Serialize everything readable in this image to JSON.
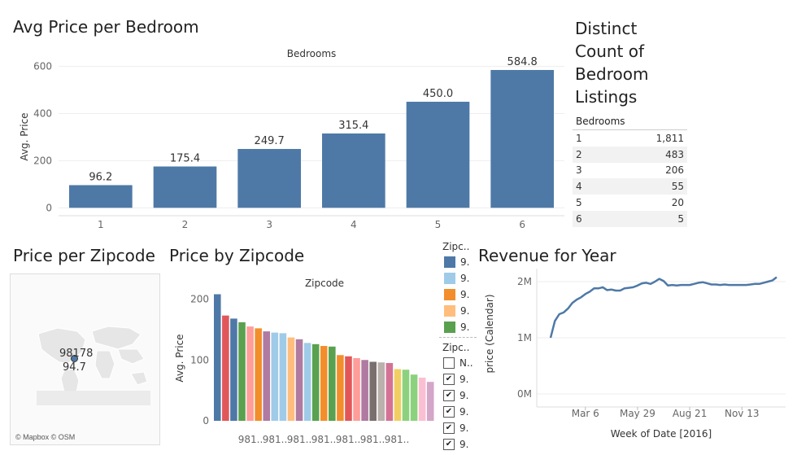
{
  "titles": {
    "avg_price_bedroom": "Avg Price per Bedroom",
    "distinct_count": "Distinct Count of Bedroom Listings",
    "price_per_zipcode": "Price per Zipcode",
    "price_by_zipcode": "Price by Zipcode",
    "revenue_year": "Revenue for Year"
  },
  "chart_data": [
    {
      "type": "bar",
      "title": "Avg Price per Bedroom",
      "header": "Bedrooms",
      "ylabel": "Avg. Price",
      "categories": [
        "1",
        "2",
        "3",
        "4",
        "5",
        "6"
      ],
      "values": [
        96.2,
        175.4,
        249.7,
        315.4,
        450.0,
        584.8
      ],
      "value_labels": [
        "96.2",
        "175.4",
        "249.7",
        "315.4",
        "450.0",
        "584.8"
      ],
      "yticks": [
        "0",
        "200",
        "400",
        "600"
      ],
      "ylim": [
        -30,
        640
      ],
      "color": "#4e79a7"
    },
    {
      "type": "table",
      "title": "Distinct Count of Bedroom Listings",
      "header": "Bedrooms",
      "rows": [
        {
          "bedrooms": "1",
          "count": "1,811"
        },
        {
          "bedrooms": "2",
          "count": "483"
        },
        {
          "bedrooms": "3",
          "count": "206"
        },
        {
          "bedrooms": "4",
          "count": "55"
        },
        {
          "bedrooms": "5",
          "count": "20"
        },
        {
          "bedrooms": "6",
          "count": "5"
        }
      ]
    },
    {
      "type": "bar",
      "title": "Price by Zipcode",
      "header": "Zipcode",
      "ylabel": "Avg. Price",
      "yticks": [
        "0",
        "100",
        "200"
      ],
      "ylim": [
        -12,
        210
      ],
      "tick_labels": [
        "981..",
        "981..",
        "981..",
        "981..",
        "981..",
        "981..",
        "981.."
      ],
      "values": [
        208,
        173,
        168,
        162,
        155,
        152,
        147,
        145,
        144,
        137,
        134,
        128,
        126,
        123,
        122,
        108,
        106,
        103,
        100,
        97,
        96,
        95,
        85,
        84,
        76,
        71,
        64
      ],
      "colors": [
        "#4e79a7",
        "#e15759",
        "#4e79a7",
        "#59a14f",
        "#ff9d9a",
        "#f28e2b",
        "#b07aa1",
        "#a0cbe8",
        "#a0cbe8",
        "#ffbe7d",
        "#b07aa1",
        "#a0cbe8",
        "#59a14f",
        "#f28e2b",
        "#59a14f",
        "#f28e2b",
        "#e15759",
        "#ff9d9a",
        "#b07aa1",
        "#79706e",
        "#bab0ac",
        "#d37295",
        "#f1ce63",
        "#8cd17d",
        "#8cd17d",
        "#fabfd2",
        "#d4a6c8"
      ]
    },
    {
      "type": "line",
      "title": "Revenue for Year",
      "xlabel": "Week of Date [2016]",
      "ylabel": "price (Calendar)",
      "yticks": [
        "0M",
        "1M",
        "2M"
      ],
      "xticks": [
        "Mar 6",
        "May 29",
        "Aug 21",
        "Nov 13"
      ],
      "xtick_weeks": [
        9,
        21,
        33,
        45
      ],
      "ylim": [
        0,
        2.2
      ],
      "x": [
        1,
        2,
        3,
        4,
        5,
        6,
        7,
        8,
        9,
        10,
        11,
        12,
        13,
        14,
        15,
        16,
        17,
        18,
        19,
        20,
        21,
        22,
        23,
        24,
        25,
        26,
        27,
        28,
        29,
        30,
        31,
        32,
        33,
        34,
        35,
        36,
        37,
        38,
        39,
        40,
        41,
        42,
        43,
        44,
        45,
        46,
        47,
        48,
        49,
        50,
        51,
        52,
        53
      ],
      "values": [
        1.0,
        1.3,
        1.42,
        1.45,
        1.52,
        1.62,
        1.68,
        1.72,
        1.78,
        1.82,
        1.88,
        1.88,
        1.9,
        1.85,
        1.86,
        1.84,
        1.84,
        1.88,
        1.89,
        1.9,
        1.93,
        1.97,
        1.98,
        1.96,
        2.0,
        2.05,
        2.01,
        1.93,
        1.94,
        1.93,
        1.94,
        1.94,
        1.94,
        1.96,
        1.98,
        1.99,
        1.97,
        1.95,
        1.95,
        1.94,
        1.95,
        1.94,
        1.94,
        1.94,
        1.94,
        1.94,
        1.95,
        1.96,
        1.96,
        1.98,
        2.0,
        2.02,
        2.08
      ],
      "color": "#4e79a7"
    }
  ],
  "map": {
    "zipcode": "98178",
    "value": "94.7",
    "attribution": "© Mapbox © OSM"
  },
  "legend": {
    "color_title": "Zipc..",
    "color_items": [
      {
        "label": "9.",
        "color": "#4e79a7"
      },
      {
        "label": "9.",
        "color": "#a0cbe8"
      },
      {
        "label": "9.",
        "color": "#f28e2b"
      },
      {
        "label": "9.",
        "color": "#ffbe7d"
      },
      {
        "label": "9.",
        "color": "#59a14f"
      }
    ],
    "filter_title": "Zipc..",
    "filter_items": [
      {
        "label": "N..",
        "checked": false
      },
      {
        "label": "9.",
        "checked": true
      },
      {
        "label": "9.",
        "checked": true
      },
      {
        "label": "9.",
        "checked": true
      },
      {
        "label": "9.",
        "checked": true
      },
      {
        "label": "9.",
        "checked": true
      }
    ]
  }
}
